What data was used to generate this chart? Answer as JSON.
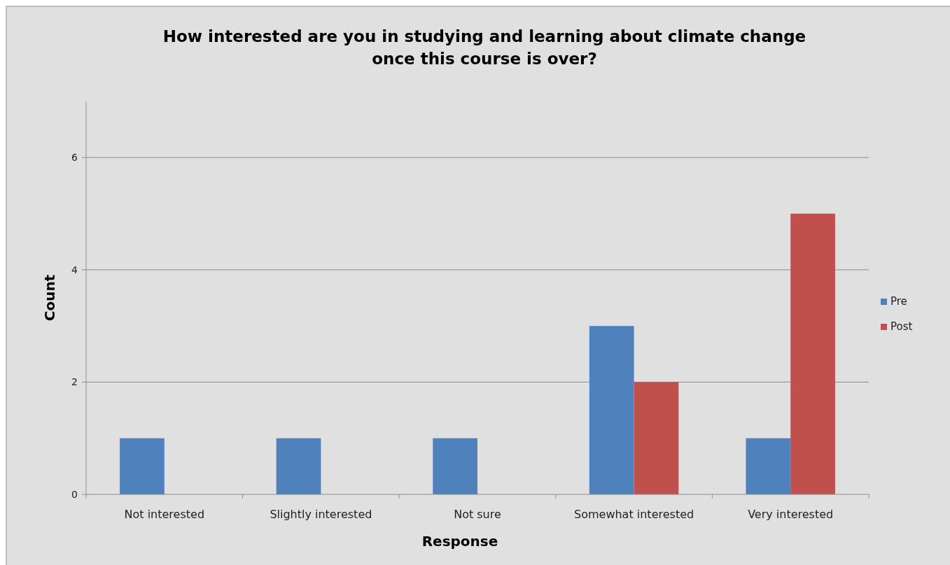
{
  "chart_data": {
    "type": "bar",
    "title": "How interested are you in studying and learning about climate change once this course is over?",
    "xlabel": "Response",
    "ylabel": "Count",
    "categories": [
      "Not interested",
      "Slightly interested",
      "Not sure",
      "Somewhat interested",
      "Very interested"
    ],
    "series": [
      {
        "name": "Pre",
        "color": "#4f81bd",
        "values": [
          1,
          1,
          1,
          3,
          1
        ]
      },
      {
        "name": "Post",
        "color": "#c0504d",
        "values": [
          0,
          0,
          0,
          2,
          5
        ]
      }
    ],
    "ylim": [
      0,
      7
    ],
    "yticks": [
      0,
      2,
      4,
      6
    ],
    "grid": "y",
    "legend": "right"
  }
}
